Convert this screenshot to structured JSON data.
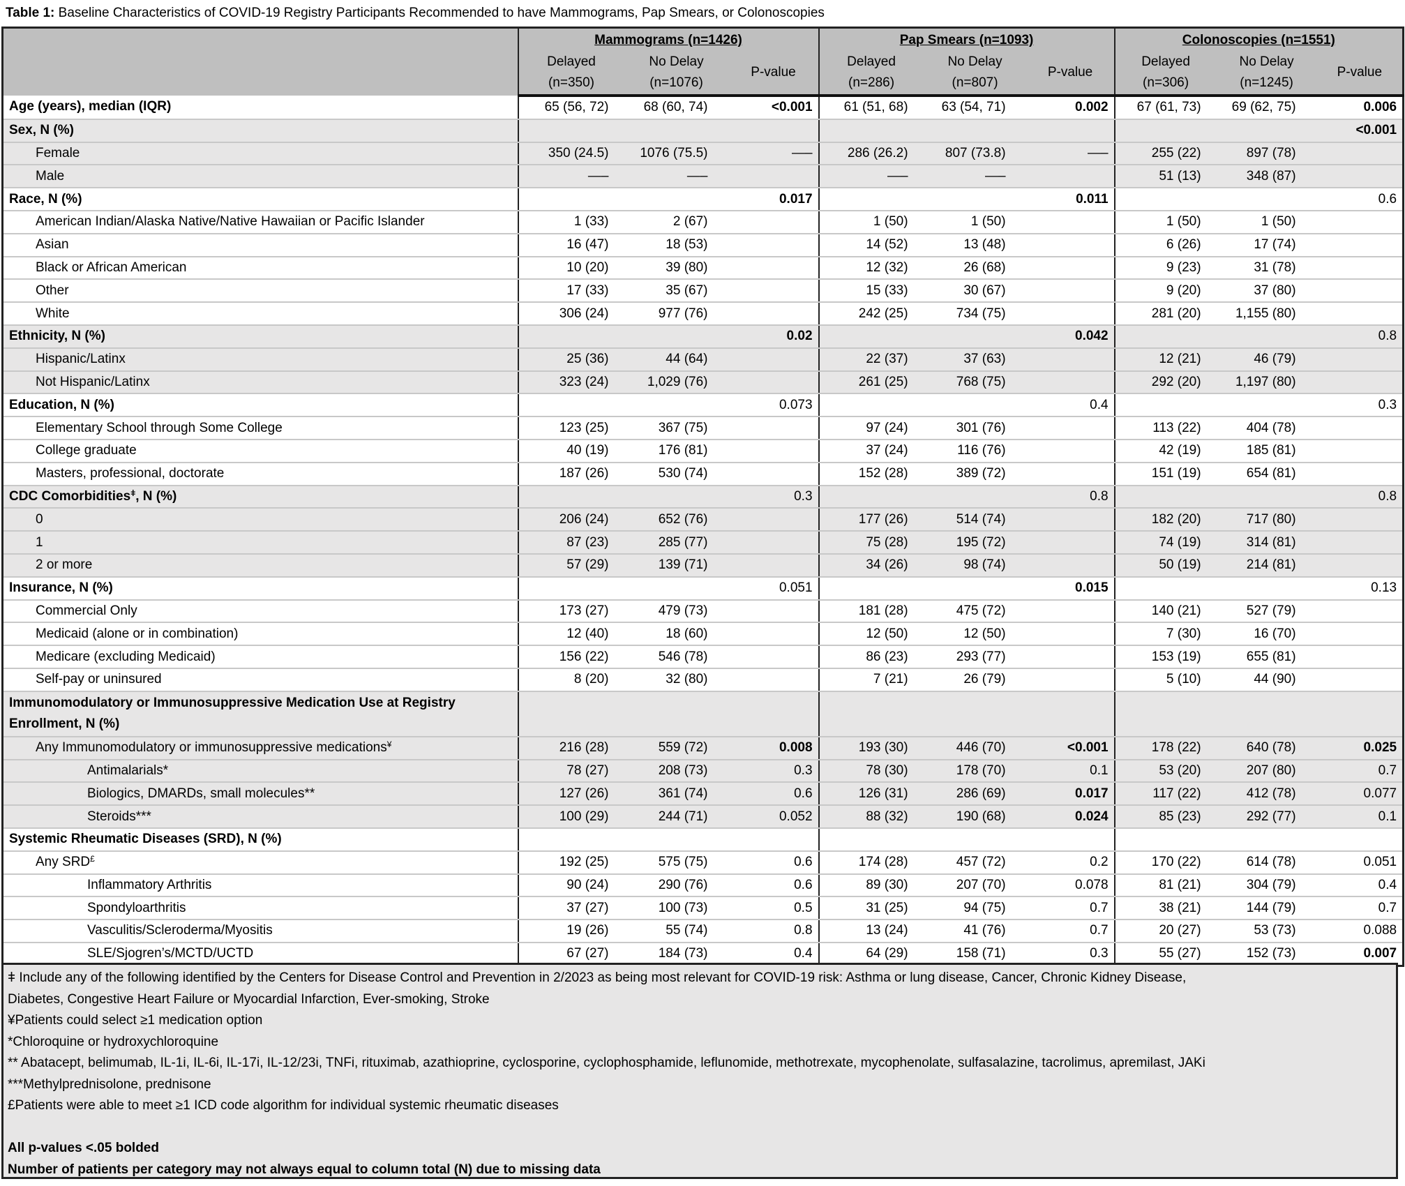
{
  "title": {
    "prefix": "Table 1:",
    "text": "Baseline Characteristics of COVID-19 Registry Participants Recommended to have Mammograms, Pap Smears, or Colonoscopies"
  },
  "groups": [
    {
      "label": "Mammograms (n=1426)",
      "delayed": [
        "Delayed",
        "(n=350)"
      ],
      "nodelay": [
        "No Delay",
        "(n=1076)"
      ],
      "p": "P-value"
    },
    {
      "label": "Pap Smears (n=1093)",
      "delayed": [
        "Delayed",
        "(n=286)"
      ],
      "nodelay": [
        "No Delay",
        "(n=807)"
      ],
      "p": "P-value"
    },
    {
      "label": "Colonoscopies (n=1551)",
      "delayed": [
        "Delayed",
        "(n=306)"
      ],
      "nodelay": [
        "No Delay",
        "(n=1245)"
      ],
      "p": "P-value"
    }
  ],
  "rows": [
    {
      "label": "Age (years), median (IQR)",
      "level": 0,
      "head": true,
      "shade": false,
      "cells": [
        "65 (56, 72)",
        "68 (60, 74)",
        "<0.001",
        "61 (51, 68)",
        "63 (54, 71)",
        "0.002",
        "67 (61, 73)",
        "69 (62, 75)",
        "0.006"
      ],
      "bold_p": [
        0,
        1,
        2
      ]
    },
    {
      "label": "Sex, N (%)",
      "level": 0,
      "head": true,
      "shade": true,
      "cells": [
        "",
        "",
        "",
        "",
        "",
        "",
        "",
        "",
        "<0.001"
      ],
      "bold_p": [
        2
      ]
    },
    {
      "label": "Female",
      "level": 1,
      "shade": true,
      "cells": [
        "350 (24.5)",
        "1076 (75.5)",
        "—–",
        "286 (26.2)",
        "807 (73.8)",
        "—–",
        "255 (22)",
        "897 (78)",
        ""
      ]
    },
    {
      "label": "Male",
      "level": 1,
      "shade": true,
      "cells": [
        "—–",
        "—–",
        "",
        "—–",
        "—–",
        "",
        "51 (13)",
        "348 (87)",
        ""
      ]
    },
    {
      "label": "Race, N (%)",
      "level": 0,
      "head": true,
      "shade": false,
      "cells": [
        "",
        "",
        "0.017",
        "",
        "",
        "0.011",
        "",
        "",
        "0.6"
      ],
      "bold_p": [
        0,
        1
      ]
    },
    {
      "label": "American Indian/Alaska Native/Native Hawaiian or Pacific Islander",
      "level": 1,
      "shade": false,
      "cells": [
        "1 (33)",
        "2 (67)",
        "",
        "1 (50)",
        "1 (50)",
        "",
        "1 (50)",
        "1 (50)",
        ""
      ]
    },
    {
      "label": "Asian",
      "level": 1,
      "shade": false,
      "cells": [
        "16 (47)",
        "18 (53)",
        "",
        "14 (52)",
        "13 (48)",
        "",
        "6 (26)",
        "17 (74)",
        ""
      ]
    },
    {
      "label": "Black or African American",
      "level": 1,
      "shade": false,
      "cells": [
        "10 (20)",
        "39 (80)",
        "",
        "12 (32)",
        "26 (68)",
        "",
        "9 (23)",
        "31 (78)",
        ""
      ]
    },
    {
      "label": "Other",
      "level": 1,
      "shade": false,
      "cells": [
        "17 (33)",
        "35 (67)",
        "",
        "15 (33)",
        "30 (67)",
        "",
        "9 (20)",
        "37 (80)",
        ""
      ]
    },
    {
      "label": "White",
      "level": 1,
      "shade": false,
      "cells": [
        "306 (24)",
        "977 (76)",
        "",
        "242 (25)",
        "734 (75)",
        "",
        "281 (20)",
        "1,155 (80)",
        ""
      ]
    },
    {
      "label": "Ethnicity, N (%)",
      "level": 0,
      "head": true,
      "shade": true,
      "cells": [
        "",
        "",
        "0.02",
        "",
        "",
        "0.042",
        "",
        "",
        "0.8"
      ],
      "bold_p": [
        0,
        1
      ]
    },
    {
      "label": "Hispanic/Latinx",
      "level": 1,
      "shade": true,
      "cells": [
        "25 (36)",
        "44 (64)",
        "",
        "22 (37)",
        "37 (63)",
        "",
        "12 (21)",
        "46 (79)",
        ""
      ]
    },
    {
      "label": "Not Hispanic/Latinx",
      "level": 1,
      "shade": true,
      "cells": [
        "323 (24)",
        "1,029 (76)",
        "",
        "261 (25)",
        "768 (75)",
        "",
        "292 (20)",
        "1,197 (80)",
        ""
      ]
    },
    {
      "label": "Education, N (%)",
      "level": 0,
      "head": true,
      "shade": false,
      "cells": [
        "",
        "",
        "0.073",
        "",
        "",
        "0.4",
        "",
        "",
        "0.3"
      ]
    },
    {
      "label": "Elementary School through Some College",
      "level": 1,
      "shade": false,
      "cells": [
        "123 (25)",
        "367 (75)",
        "",
        "97 (24)",
        "301 (76)",
        "",
        "113 (22)",
        "404 (78)",
        ""
      ]
    },
    {
      "label": "College graduate",
      "level": 1,
      "shade": false,
      "cells": [
        "40 (19)",
        "176 (81)",
        "",
        "37 (24)",
        "116 (76)",
        "",
        "42 (19)",
        "185 (81)",
        ""
      ]
    },
    {
      "label": "Masters, professional, doctorate",
      "level": 1,
      "shade": false,
      "cells": [
        "187 (26)",
        "530 (74)",
        "",
        "152 (28)",
        "389 (72)",
        "",
        "151 (19)",
        "654 (81)",
        ""
      ]
    },
    {
      "label": "CDC Comorbidities",
      "sup": "ǂ",
      "suffix": ", N (%)",
      "level": 0,
      "head": true,
      "shade": true,
      "cells": [
        "",
        "",
        "0.3",
        "",
        "",
        "0.8",
        "",
        "",
        "0.8"
      ]
    },
    {
      "label": "0",
      "level": 1,
      "shade": true,
      "cells": [
        "206 (24)",
        "652 (76)",
        "",
        "177 (26)",
        "514 (74)",
        "",
        "182 (20)",
        "717 (80)",
        ""
      ]
    },
    {
      "label": "1",
      "level": 1,
      "shade": true,
      "cells": [
        "87 (23)",
        "285 (77)",
        "",
        "75 (28)",
        "195 (72)",
        "",
        "74 (19)",
        "314 (81)",
        ""
      ]
    },
    {
      "label": "2 or more",
      "level": 1,
      "shade": true,
      "cells": [
        "57 (29)",
        "139 (71)",
        "",
        "34 (26)",
        "98 (74)",
        "",
        "50 (19)",
        "214 (81)",
        ""
      ]
    },
    {
      "label": "Insurance, N (%)",
      "level": 0,
      "head": true,
      "shade": false,
      "cells": [
        "",
        "",
        "0.051",
        "",
        "",
        "0.015",
        "",
        "",
        "0.13"
      ],
      "bold_p": [
        1
      ]
    },
    {
      "label": "Commercial Only",
      "level": 1,
      "shade": false,
      "cells": [
        "173 (27)",
        "479 (73)",
        "",
        "181 (28)",
        "475 (72)",
        "",
        "140 (21)",
        "527 (79)",
        ""
      ]
    },
    {
      "label": "Medicaid (alone or in combination)",
      "level": 1,
      "shade": false,
      "cells": [
        "12 (40)",
        "18 (60)",
        "",
        "12 (50)",
        "12 (50)",
        "",
        "7 (30)",
        "16 (70)",
        ""
      ]
    },
    {
      "label": "Medicare (excluding Medicaid)",
      "level": 1,
      "shade": false,
      "cells": [
        "156 (22)",
        "546 (78)",
        "",
        "86 (23)",
        "293 (77)",
        "",
        "153 (19)",
        "655 (81)",
        ""
      ]
    },
    {
      "label": "Self-pay or uninsured",
      "level": 1,
      "shade": false,
      "cells": [
        "8 (20)",
        "32 (80)",
        "",
        "7 (21)",
        "26 (79)",
        "",
        "5 (10)",
        "44 (90)",
        ""
      ]
    },
    {
      "label": "Immunomodulatory or Immunosuppressive Medication Use at Registry Enrollment, N (%)",
      "level": 0,
      "head": true,
      "double": true,
      "shade": true,
      "cells": [
        "",
        "",
        "",
        "",
        "",
        "",
        "",
        "",
        ""
      ]
    },
    {
      "label": "Any Immunomodulatory or immunosuppressive medications",
      "sup": "¥",
      "level": 1,
      "shade": true,
      "cells": [
        "216 (28)",
        "559 (72)",
        "0.008",
        "193 (30)",
        "446 (70)",
        "<0.001",
        "178 (22)",
        "640 (78)",
        "0.025"
      ],
      "bold_p": [
        0,
        1,
        2
      ]
    },
    {
      "label": "Antimalarials*",
      "level": 2,
      "shade": true,
      "cells": [
        "78 (27)",
        "208 (73)",
        "0.3",
        "78 (30)",
        "178 (70)",
        "0.1",
        "53 (20)",
        "207 (80)",
        "0.7"
      ]
    },
    {
      "label": "Biologics, DMARDs, small molecules**",
      "level": 2,
      "shade": true,
      "cells": [
        "127 (26)",
        "361 (74)",
        "0.6",
        "126 (31)",
        "286 (69)",
        "0.017",
        "117 (22)",
        "412 (78)",
        "0.077"
      ],
      "bold_p": [
        1
      ]
    },
    {
      "label": "Steroids***",
      "level": 2,
      "shade": true,
      "cells": [
        "100 (29)",
        "244 (71)",
        "0.052",
        "88 (32)",
        "190 (68)",
        "0.024",
        "85 (23)",
        "292 (77)",
        "0.1"
      ],
      "bold_p": [
        1
      ]
    },
    {
      "label": "Systemic Rheumatic Diseases (SRD), N (%)",
      "level": 0,
      "head": true,
      "shade": false,
      "cells": [
        "",
        "",
        "",
        "",
        "",
        "",
        "",
        "",
        ""
      ]
    },
    {
      "label": "Any SRD",
      "sup": "£",
      "level": 1,
      "shade": false,
      "cells": [
        "192 (25)",
        "575 (75)",
        "0.6",
        "174 (28)",
        "457 (72)",
        "0.2",
        "170 (22)",
        "614 (78)",
        "0.051"
      ]
    },
    {
      "label": "Inflammatory Arthritis",
      "level": 2,
      "shade": false,
      "cells": [
        "90 (24)",
        "290 (76)",
        "0.6",
        "89 (30)",
        "207 (70)",
        "0.078",
        "81 (21)",
        "304 (79)",
        "0.4"
      ]
    },
    {
      "label": "Spondyloarthritis",
      "level": 2,
      "shade": false,
      "cells": [
        "37 (27)",
        "100 (73)",
        "0.5",
        "31 (25)",
        "94 (75)",
        "0.7",
        "38 (21)",
        "144 (79)",
        "0.7"
      ]
    },
    {
      "label": "Vasculitis/Scleroderma/Myositis",
      "level": 2,
      "shade": false,
      "cells": [
        "19 (26)",
        "55 (74)",
        "0.8",
        "13 (24)",
        "41 (76)",
        "0.7",
        "20 (27)",
        "53 (73)",
        "0.088"
      ]
    },
    {
      "label": "SLE/Sjogren’s/MCTD/UCTD",
      "level": 2,
      "shade": false,
      "cells": [
        "67 (27)",
        "184 (73)",
        "0.4",
        "64 (29)",
        "158 (71)",
        "0.3",
        "55 (27)",
        "152 (73)",
        "0.007"
      ],
      "bold_p": [
        2
      ]
    }
  ],
  "footnotes": [
    {
      "text": "ǂ Include any of the following identified by the Centers for Disease Control and Prevention in 2/2023 as being most relevant for COVID-19 risk: Asthma or lung disease, Cancer, Chronic Kidney Disease,"
    },
    {
      "text": "Diabetes, Congestive Heart Failure or Myocardial Infarction, Ever-smoking, Stroke"
    },
    {
      "text": "¥Patients could select ≥1 medication option"
    },
    {
      "text": "*Chloroquine or hydroxychloroquine"
    },
    {
      "text": "** Abatacept, belimumab, IL-1i, IL-6i, IL-17i, IL-12/23i,  TNFi, rituximab, azathioprine, cyclosporine, cyclophosphamide, leflunomide, methotrexate, mycophenolate, sulfasalazine, tacrolimus, apremilast, JAKi"
    },
    {
      "text": "***Methylprednisolone, prednisone"
    },
    {
      "text": " £Patients were able to meet ≥1 ICD code algorithm for individual systemic rheumatic diseases"
    },
    {
      "text": ""
    },
    {
      "text": "All p-values <.05 bolded",
      "bold": true
    },
    {
      "text": "Number of patients per category may not always equal to column total (N) due to missing data",
      "bold": true
    }
  ]
}
